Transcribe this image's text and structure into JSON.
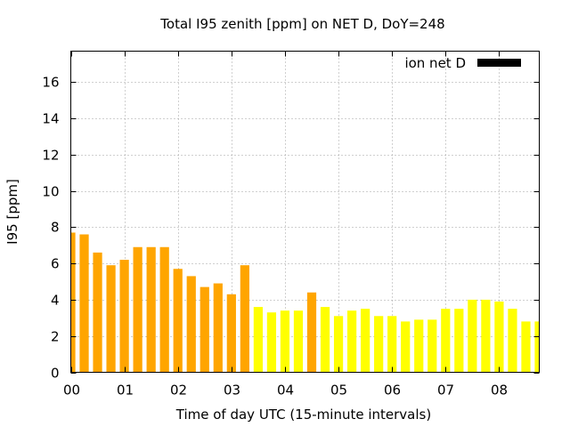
{
  "chart_data": {
    "type": "bar",
    "title": "Total I95 zenith [ppm] on NET D, DoY=248",
    "xlabel": "Time of day UTC (15-minute intervals)",
    "ylabel": "I95 [ppm]",
    "legend": {
      "label": "ion net D",
      "color": "#000000",
      "placement": "top-right"
    },
    "grid": true,
    "xlim": [
      0,
      35
    ],
    "ylim": [
      0,
      17.7
    ],
    "x_ticks": [
      {
        "value": 0,
        "label": "00"
      },
      {
        "value": 4,
        "label": "01"
      },
      {
        "value": 8,
        "label": "02"
      },
      {
        "value": 12,
        "label": "03"
      },
      {
        "value": 16,
        "label": "04"
      },
      {
        "value": 20,
        "label": "05"
      },
      {
        "value": 24,
        "label": "06"
      },
      {
        "value": 28,
        "label": "07"
      },
      {
        "value": 32,
        "label": "08"
      }
    ],
    "y_ticks": [
      0,
      2,
      4,
      6,
      8,
      10,
      12,
      14,
      16
    ],
    "colors": {
      "orange": "#ffa500",
      "yellow": "#ffff00"
    },
    "bars": [
      {
        "x": 0,
        "value": 7.7,
        "color": "orange"
      },
      {
        "x": 1,
        "value": 7.6,
        "color": "orange"
      },
      {
        "x": 2,
        "value": 6.6,
        "color": "orange"
      },
      {
        "x": 3,
        "value": 5.9,
        "color": "orange"
      },
      {
        "x": 4,
        "value": 6.2,
        "color": "orange"
      },
      {
        "x": 5,
        "value": 6.9,
        "color": "orange"
      },
      {
        "x": 6,
        "value": 6.9,
        "color": "orange"
      },
      {
        "x": 7,
        "value": 6.9,
        "color": "orange"
      },
      {
        "x": 8,
        "value": 5.7,
        "color": "orange"
      },
      {
        "x": 9,
        "value": 5.3,
        "color": "orange"
      },
      {
        "x": 10,
        "value": 4.7,
        "color": "orange"
      },
      {
        "x": 11,
        "value": 4.9,
        "color": "orange"
      },
      {
        "x": 12,
        "value": 4.3,
        "color": "orange"
      },
      {
        "x": 13,
        "value": 5.9,
        "color": "orange"
      },
      {
        "x": 14,
        "value": 3.6,
        "color": "yellow"
      },
      {
        "x": 15,
        "value": 3.3,
        "color": "yellow"
      },
      {
        "x": 16,
        "value": 3.4,
        "color": "yellow"
      },
      {
        "x": 17,
        "value": 3.4,
        "color": "yellow"
      },
      {
        "x": 18,
        "value": 4.4,
        "color": "orange"
      },
      {
        "x": 19,
        "value": 3.6,
        "color": "yellow"
      },
      {
        "x": 20,
        "value": 3.1,
        "color": "yellow"
      },
      {
        "x": 21,
        "value": 3.4,
        "color": "yellow"
      },
      {
        "x": 22,
        "value": 3.5,
        "color": "yellow"
      },
      {
        "x": 23,
        "value": 3.1,
        "color": "yellow"
      },
      {
        "x": 24,
        "value": 3.1,
        "color": "yellow"
      },
      {
        "x": 25,
        "value": 2.8,
        "color": "yellow"
      },
      {
        "x": 26,
        "value": 2.9,
        "color": "yellow"
      },
      {
        "x": 27,
        "value": 2.9,
        "color": "yellow"
      },
      {
        "x": 28,
        "value": 3.5,
        "color": "yellow"
      },
      {
        "x": 29,
        "value": 3.5,
        "color": "yellow"
      },
      {
        "x": 30,
        "value": 4.0,
        "color": "yellow"
      },
      {
        "x": 31,
        "value": 4.0,
        "color": "yellow"
      },
      {
        "x": 32,
        "value": 3.9,
        "color": "yellow"
      },
      {
        "x": 33,
        "value": 3.5,
        "color": "yellow"
      },
      {
        "x": 34,
        "value": 2.8,
        "color": "yellow"
      },
      {
        "x": 35,
        "value": 2.8,
        "color": "yellow"
      }
    ]
  }
}
